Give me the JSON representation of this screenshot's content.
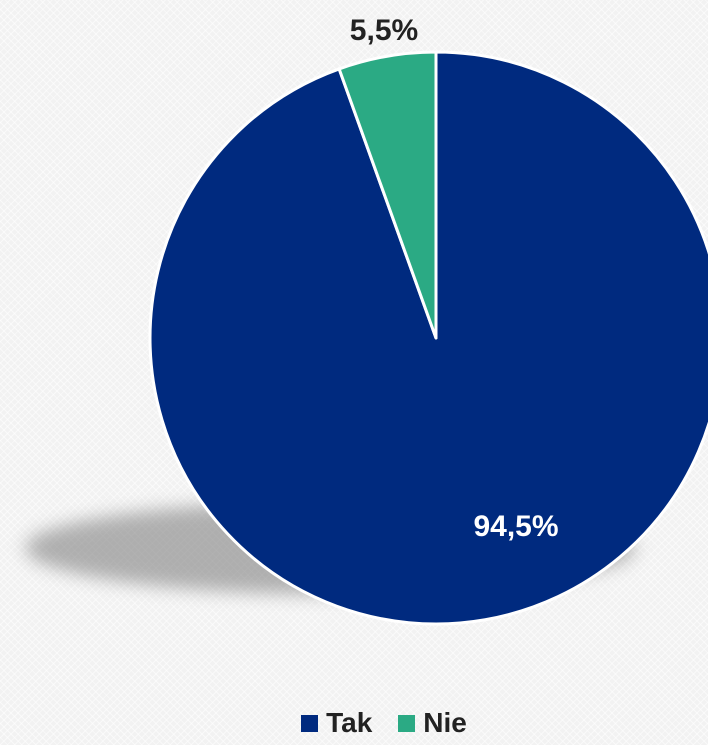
{
  "chart_data": {
    "type": "pie",
    "categories": [
      "Tak",
      "Nie"
    ],
    "values": [
      94.5,
      5.5
    ],
    "data_labels": [
      "94,5%",
      "5,5%"
    ],
    "colors": [
      "#002a7f",
      "#2baa84"
    ],
    "title": "",
    "legend_position": "bottom",
    "start_angle": "12 o'clock",
    "direction": "clockwise"
  },
  "legend": {
    "items": [
      {
        "label": "Tak",
        "color": "#002a7f"
      },
      {
        "label": "Nie",
        "color": "#2baa84"
      }
    ]
  }
}
